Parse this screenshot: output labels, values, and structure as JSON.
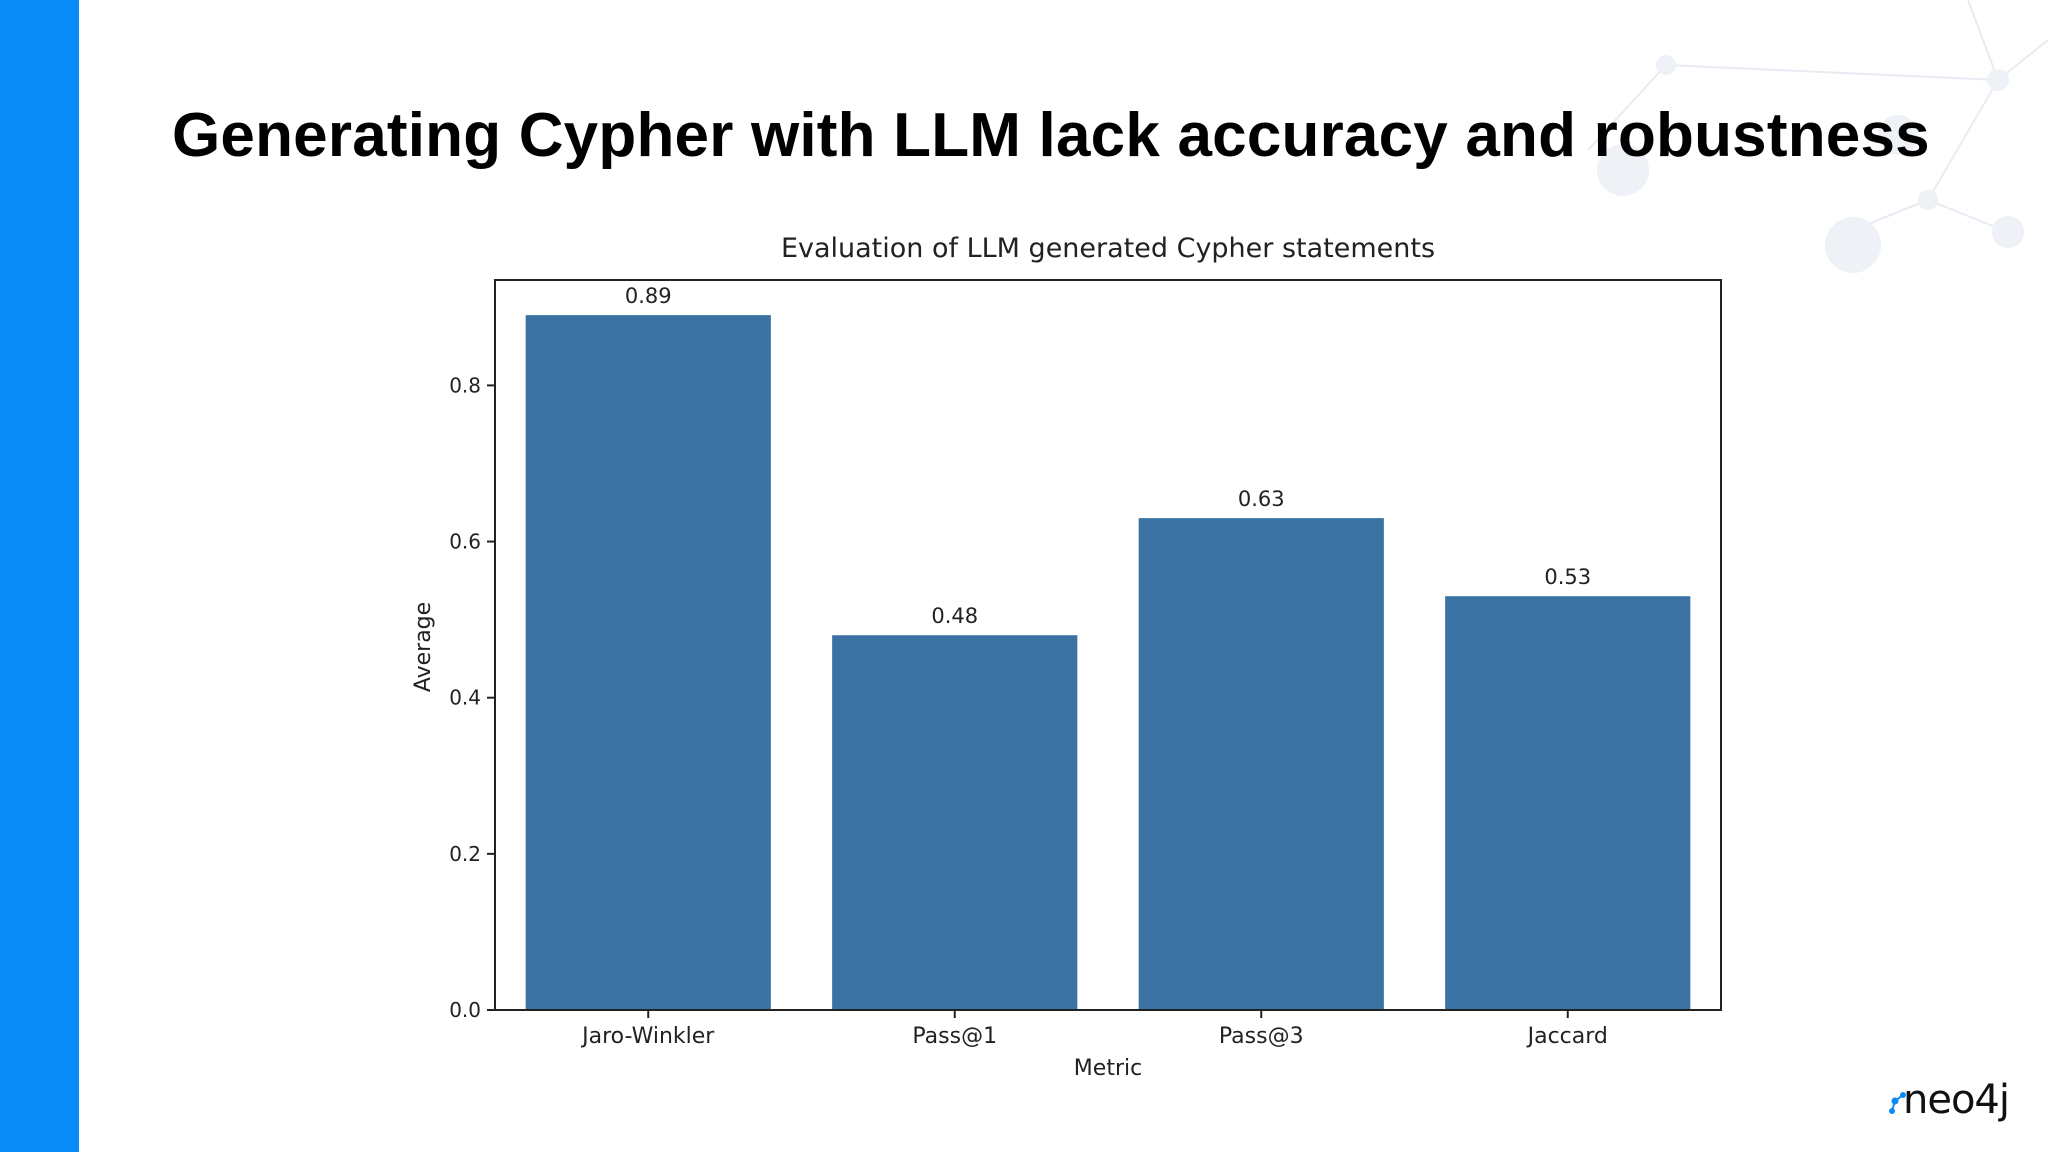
{
  "slide": {
    "title": "Generating Cypher with LLM lack accuracy and robustness",
    "accent_color": "#0a8cf8"
  },
  "logo": {
    "text": "neo4j",
    "icon": "neo4j-logo-icon"
  },
  "chart_data": {
    "type": "bar",
    "title": "Evaluation of LLM generated Cypher statements",
    "xlabel": "Metric",
    "ylabel": "Average",
    "categories": [
      "Jaro-Winkler",
      "Pass@1",
      "Pass@3",
      "Jaccard"
    ],
    "values": [
      0.89,
      0.48,
      0.63,
      0.53
    ],
    "value_labels": [
      "0.89",
      "0.48",
      "0.63",
      "0.53"
    ],
    "yticks": [
      0.0,
      0.2,
      0.4,
      0.6,
      0.8
    ],
    "ytick_labels": [
      "0.0",
      "0.2",
      "0.4",
      "0.6",
      "0.8"
    ],
    "ylim": [
      0,
      0.935
    ],
    "bar_color": "#3a73a3",
    "grid": false,
    "legend": "none"
  }
}
